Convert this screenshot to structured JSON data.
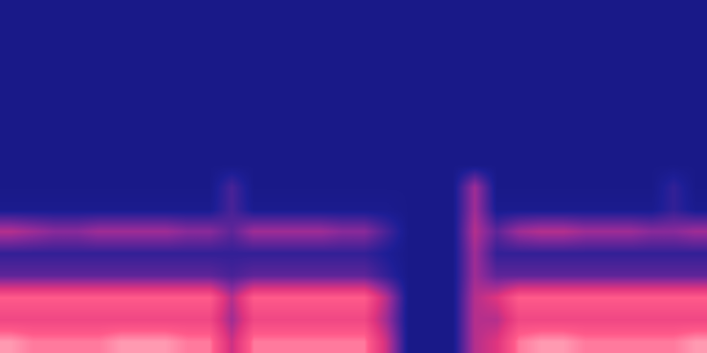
{
  "chart_data": {
    "type": "heatmap",
    "tick_labels": false,
    "color_range": [
      0,
      1
    ],
    "cells": [
      [
        0.1,
        0.1,
        0.1,
        0.1,
        0.1,
        0.1,
        0.1,
        0.1,
        0.1,
        0.1,
        0.1,
        0.1,
        0.1,
        0.1,
        0.1,
        0.1,
        0.1,
        0.1,
        0.1,
        0.1,
        0.1,
        0.1,
        0.1,
        0.1,
        0.1,
        0.1,
        0.1,
        0.1,
        0.1,
        0.1,
        0.1,
        0.1
      ],
      [
        0.1,
        0.1,
        0.1,
        0.1,
        0.1,
        0.1,
        0.1,
        0.1,
        0.1,
        0.1,
        0.1,
        0.1,
        0.1,
        0.1,
        0.1,
        0.1,
        0.1,
        0.1,
        0.1,
        0.1,
        0.1,
        0.1,
        0.1,
        0.1,
        0.1,
        0.1,
        0.1,
        0.1,
        0.1,
        0.1,
        0.1,
        0.1
      ],
      [
        0.1,
        0.1,
        0.1,
        0.1,
        0.1,
        0.1,
        0.1,
        0.1,
        0.1,
        0.1,
        0.1,
        0.1,
        0.1,
        0.1,
        0.1,
        0.1,
        0.1,
        0.1,
        0.1,
        0.1,
        0.1,
        0.1,
        0.1,
        0.1,
        0.1,
        0.1,
        0.1,
        0.1,
        0.1,
        0.1,
        0.1,
        0.1
      ],
      [
        0.1,
        0.1,
        0.1,
        0.1,
        0.1,
        0.1,
        0.1,
        0.1,
        0.1,
        0.1,
        0.1,
        0.1,
        0.1,
        0.1,
        0.1,
        0.1,
        0.1,
        0.1,
        0.1,
        0.1,
        0.1,
        0.1,
        0.1,
        0.1,
        0.1,
        0.1,
        0.1,
        0.1,
        0.1,
        0.1,
        0.1,
        0.1
      ],
      [
        0.1,
        0.1,
        0.1,
        0.1,
        0.1,
        0.1,
        0.1,
        0.1,
        0.1,
        0.1,
        0.1,
        0.1,
        0.1,
        0.1,
        0.1,
        0.1,
        0.1,
        0.1,
        0.1,
        0.1,
        0.1,
        0.1,
        0.1,
        0.1,
        0.1,
        0.1,
        0.1,
        0.1,
        0.1,
        0.1,
        0.1,
        0.1
      ],
      [
        0.1,
        0.1,
        0.1,
        0.1,
        0.1,
        0.1,
        0.1,
        0.1,
        0.1,
        0.1,
        0.1,
        0.1,
        0.1,
        0.1,
        0.1,
        0.1,
        0.1,
        0.1,
        0.1,
        0.1,
        0.1,
        0.1,
        0.1,
        0.1,
        0.1,
        0.1,
        0.1,
        0.1,
        0.1,
        0.1,
        0.1,
        0.1
      ],
      [
        0.1,
        0.1,
        0.1,
        0.1,
        0.1,
        0.1,
        0.1,
        0.1,
        0.1,
        0.1,
        0.1,
        0.1,
        0.1,
        0.1,
        0.1,
        0.1,
        0.1,
        0.1,
        0.1,
        0.1,
        0.1,
        0.1,
        0.1,
        0.1,
        0.1,
        0.1,
        0.1,
        0.1,
        0.1,
        0.1,
        0.1,
        0.1
      ],
      [
        0.1,
        0.1,
        0.1,
        0.1,
        0.1,
        0.1,
        0.1,
        0.1,
        0.1,
        0.1,
        0.1,
        0.1,
        0.1,
        0.1,
        0.1,
        0.1,
        0.1,
        0.1,
        0.1,
        0.1,
        0.1,
        0.1,
        0.1,
        0.1,
        0.1,
        0.1,
        0.1,
        0.1,
        0.1,
        0.1,
        0.1,
        0.1
      ],
      [
        0.1,
        0.1,
        0.1,
        0.1,
        0.1,
        0.1,
        0.1,
        0.1,
        0.1,
        0.1,
        0.25,
        0.1,
        0.1,
        0.1,
        0.1,
        0.1,
        0.1,
        0.1,
        0.1,
        0.1,
        0.1,
        0.45,
        0.1,
        0.1,
        0.1,
        0.1,
        0.1,
        0.1,
        0.1,
        0.1,
        0.2,
        0.1
      ],
      [
        0.12,
        0.12,
        0.12,
        0.12,
        0.12,
        0.12,
        0.12,
        0.12,
        0.12,
        0.12,
        0.25,
        0.12,
        0.12,
        0.12,
        0.12,
        0.12,
        0.12,
        0.12,
        0.1,
        0.1,
        0.1,
        0.45,
        0.12,
        0.12,
        0.12,
        0.12,
        0.12,
        0.12,
        0.12,
        0.12,
        0.2,
        0.12
      ],
      [
        0.5,
        0.45,
        0.4,
        0.4,
        0.45,
        0.45,
        0.45,
        0.45,
        0.4,
        0.4,
        0.3,
        0.45,
        0.45,
        0.45,
        0.45,
        0.4,
        0.4,
        0.25,
        0.1,
        0.1,
        0.1,
        0.5,
        0.3,
        0.45,
        0.5,
        0.5,
        0.45,
        0.45,
        0.45,
        0.4,
        0.4,
        0.45
      ],
      [
        0.2,
        0.2,
        0.2,
        0.2,
        0.2,
        0.2,
        0.2,
        0.2,
        0.2,
        0.2,
        0.2,
        0.2,
        0.2,
        0.2,
        0.2,
        0.2,
        0.2,
        0.15,
        0.1,
        0.1,
        0.1,
        0.45,
        0.2,
        0.2,
        0.2,
        0.2,
        0.2,
        0.2,
        0.2,
        0.2,
        0.2,
        0.2
      ],
      [
        0.3,
        0.3,
        0.3,
        0.3,
        0.3,
        0.3,
        0.3,
        0.3,
        0.3,
        0.3,
        0.25,
        0.3,
        0.3,
        0.3,
        0.3,
        0.3,
        0.3,
        0.2,
        0.1,
        0.1,
        0.1,
        0.45,
        0.3,
        0.3,
        0.3,
        0.3,
        0.3,
        0.3,
        0.3,
        0.3,
        0.3,
        0.3
      ],
      [
        0.8,
        0.8,
        0.8,
        0.8,
        0.8,
        0.8,
        0.8,
        0.8,
        0.8,
        0.8,
        0.5,
        0.8,
        0.8,
        0.8,
        0.8,
        0.8,
        0.8,
        0.5,
        0.1,
        0.1,
        0.1,
        0.5,
        0.6,
        0.8,
        0.8,
        0.8,
        0.8,
        0.8,
        0.8,
        0.8,
        0.8,
        0.8
      ],
      [
        0.7,
        0.7,
        0.7,
        0.7,
        0.7,
        0.7,
        0.7,
        0.7,
        0.7,
        0.7,
        0.45,
        0.7,
        0.7,
        0.7,
        0.7,
        0.7,
        0.7,
        0.45,
        0.1,
        0.1,
        0.1,
        0.5,
        0.5,
        0.7,
        0.7,
        0.7,
        0.7,
        0.7,
        0.7,
        0.7,
        0.7,
        0.7
      ],
      [
        0.9,
        0.85,
        0.85,
        0.85,
        0.85,
        0.9,
        0.9,
        0.9,
        0.85,
        0.85,
        0.55,
        0.85,
        0.85,
        0.85,
        0.85,
        0.85,
        0.85,
        0.55,
        0.1,
        0.1,
        0.1,
        0.5,
        0.6,
        0.85,
        0.9,
        0.9,
        0.85,
        0.85,
        0.85,
        0.85,
        0.85,
        0.9
      ]
    ]
  }
}
